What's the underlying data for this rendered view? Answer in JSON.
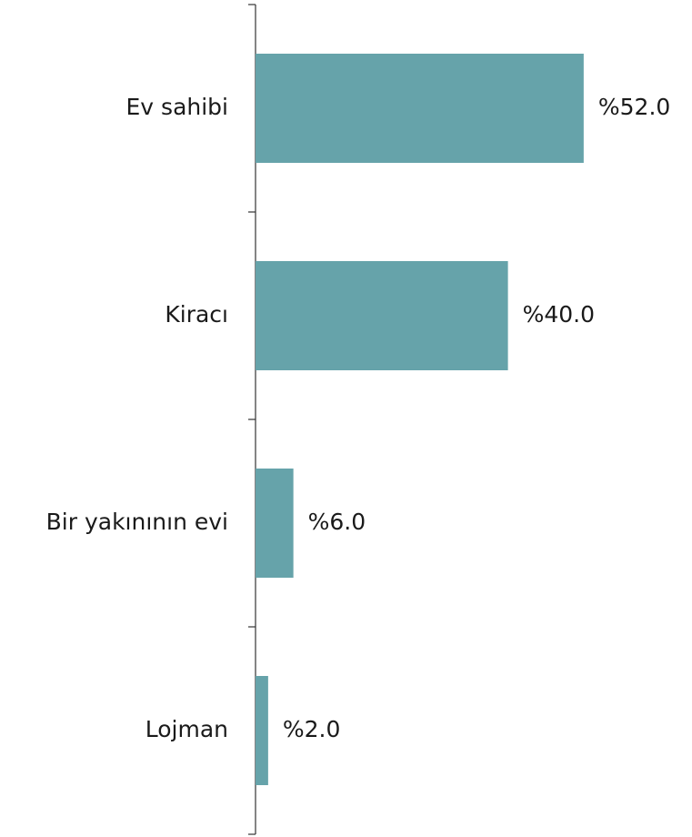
{
  "chart_data": {
    "type": "barh",
    "categories": [
      "Ev sahibi",
      "Kiracı",
      "Bir yakınının evi",
      "Lojman"
    ],
    "values": [
      52.0,
      40.0,
      6.0,
      2.0
    ],
    "value_labels": [
      "%52.0",
      "%40.0",
      "%6.0",
      "%2.0"
    ],
    "color": "#66a3aa"
  }
}
